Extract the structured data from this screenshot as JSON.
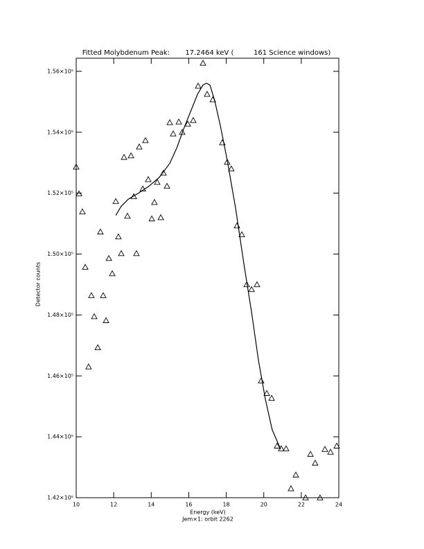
{
  "chart_data": {
    "type": "scatter",
    "title": "Fitted Molybdenum Peak:       17.2464 keV (         161 Science windows)",
    "x_label": "Energy (keV)",
    "subtitle": "Jem×1: orbit 2262",
    "y_label": "Detector counts",
    "xlim": [
      10,
      24
    ],
    "ylim": [
      142000,
      156430
    ],
    "xticks": [
      10,
      12,
      14,
      16,
      18,
      20,
      22,
      24
    ],
    "yticks": [
      {
        "value": 142000,
        "label": "1.42×10⁵"
      },
      {
        "value": 144000,
        "label": "1.44×10⁵"
      },
      {
        "value": 146000,
        "label": "1.46×10⁵"
      },
      {
        "value": 148000,
        "label": "1.48×10⁵"
      },
      {
        "value": 150000,
        "label": "1.50×10⁵"
      },
      {
        "value": 152000,
        "label": "1.52×10⁵"
      },
      {
        "value": 154000,
        "label": "1.54×10⁵"
      },
      {
        "value": 156000,
        "label": "1.56×10⁵"
      }
    ],
    "series": [
      {
        "type": "scatter",
        "marker": "triangle",
        "color": "#000000",
        "x": [
          10.0,
          10.15,
          10.33,
          10.48,
          10.66,
          10.81,
          10.96,
          11.15,
          11.29,
          11.44,
          11.59,
          11.74,
          11.92,
          12.11,
          12.25,
          12.4,
          12.55,
          12.73,
          12.92,
          13.07,
          13.21,
          13.36,
          13.55,
          13.69,
          13.84,
          14.03,
          14.17,
          14.32,
          14.51,
          14.65,
          14.84,
          14.99,
          15.17,
          15.47,
          15.65,
          15.95,
          16.24,
          16.5,
          16.76,
          16.98,
          17.28,
          17.79,
          18.05,
          18.27,
          18.57,
          18.83,
          19.09,
          19.35,
          19.64,
          19.86,
          20.16,
          20.42,
          20.71,
          20.93,
          21.19,
          21.45,
          21.71,
          22.23,
          22.49,
          22.74,
          23.0,
          23.26,
          23.56,
          23.89
        ],
        "values": [
          152860,
          151980,
          151390,
          149570,
          146300,
          148640,
          147950,
          146930,
          150730,
          148640,
          147820,
          149860,
          149360,
          151730,
          150570,
          150020,
          153180,
          151250,
          153230,
          151890,
          150020,
          153520,
          152140,
          153730,
          152450,
          151160,
          151700,
          152360,
          151200,
          152660,
          152230,
          154320,
          153950,
          154340,
          154000,
          154270,
          154390,
          155520,
          156270,
          155250,
          155070,
          153660,
          153020,
          152800,
          150930,
          150640,
          149000,
          148840,
          149000,
          145840,
          145430,
          145270,
          143700,
          143610,
          143610,
          142300,
          142750,
          142000,
          143430,
          143140,
          142000,
          143590,
          143500,
          143700
        ]
      },
      {
        "type": "line",
        "color": "#000000",
        "x": [
          12.11,
          12.4,
          12.77,
          13.32,
          13.88,
          14.43,
          14.99,
          15.36,
          15.73,
          16.1,
          16.47,
          16.76,
          16.94,
          17.13,
          17.39,
          17.68,
          18.05,
          18.5,
          18.94,
          19.35,
          19.72,
          20.08,
          20.45,
          20.9
        ],
        "values": [
          151270,
          151570,
          151800,
          152000,
          152230,
          152520,
          152980,
          153480,
          154110,
          154680,
          155250,
          155550,
          155610,
          155550,
          155020,
          154230,
          153090,
          151500,
          149680,
          148090,
          146500,
          145250,
          144230,
          143590
        ]
      }
    ]
  }
}
